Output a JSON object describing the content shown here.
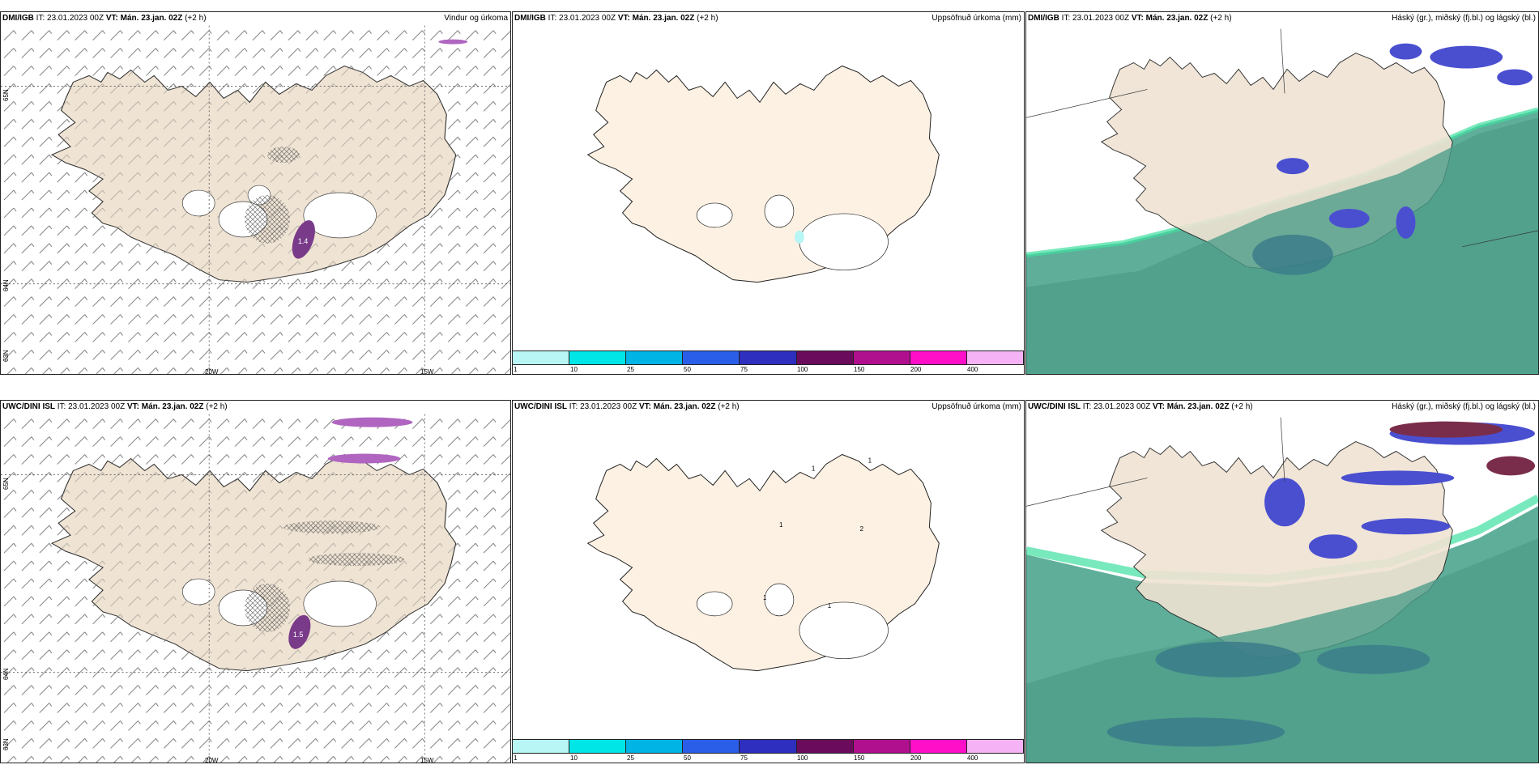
{
  "colors": {
    "land": "#efe3d3",
    "land_light": "#fdf1e3",
    "sea_green": "#5fae9a",
    "precip_dark": "#7a3a8a",
    "cloud_blue": "#4a4fd0"
  },
  "row1": {
    "model": "DMI/IGB",
    "it": "23.01.2023 00Z",
    "vt_label": "VT:",
    "vt": "Mán. 23.jan. 02Z",
    "lead": "(+2 h)",
    "panel1_title": "Vindur og úrkoma",
    "panel2_title": "Uppsöfnuð úrkoma (mm)",
    "panel3_title": "Háský (gr.), miðský (fj.bl.) og lágský (bl.)",
    "max_label": "1.4"
  },
  "row2": {
    "model": "UWC/DINI ISL",
    "it": "23.01.2023 00Z",
    "vt_label": "VT:",
    "vt": "Mán. 23.jan. 02Z",
    "lead": "(+2 h)",
    "panel1_title": "Vindur og úrkoma",
    "panel2_title": "Uppsöfnuð úrkoma (mm)",
    "panel3_title": "Háský (gr.), miðský (fj.bl.) og lágský (bl.)",
    "max_label": "1.5"
  },
  "it_label": "IT:",
  "axes": {
    "lon1": "20W",
    "lon2": "15W",
    "lat65": "65N",
    "lat64": "64N",
    "lat63": "63N"
  },
  "colorbar": {
    "ticks": [
      "1",
      "10",
      "25",
      "50",
      "75",
      "100",
      "150",
      "200",
      "400"
    ],
    "colors": [
      "#b8f5f5",
      "#00e5e5",
      "#00b4e6",
      "#2a5ee8",
      "#2e2ebf",
      "#6b0b5c",
      "#b0108e",
      "#ff10c8",
      "#f5b3f5"
    ]
  },
  "precip_labels_row2": [
    "1",
    "1",
    "1",
    "2",
    "1",
    "1"
  ]
}
